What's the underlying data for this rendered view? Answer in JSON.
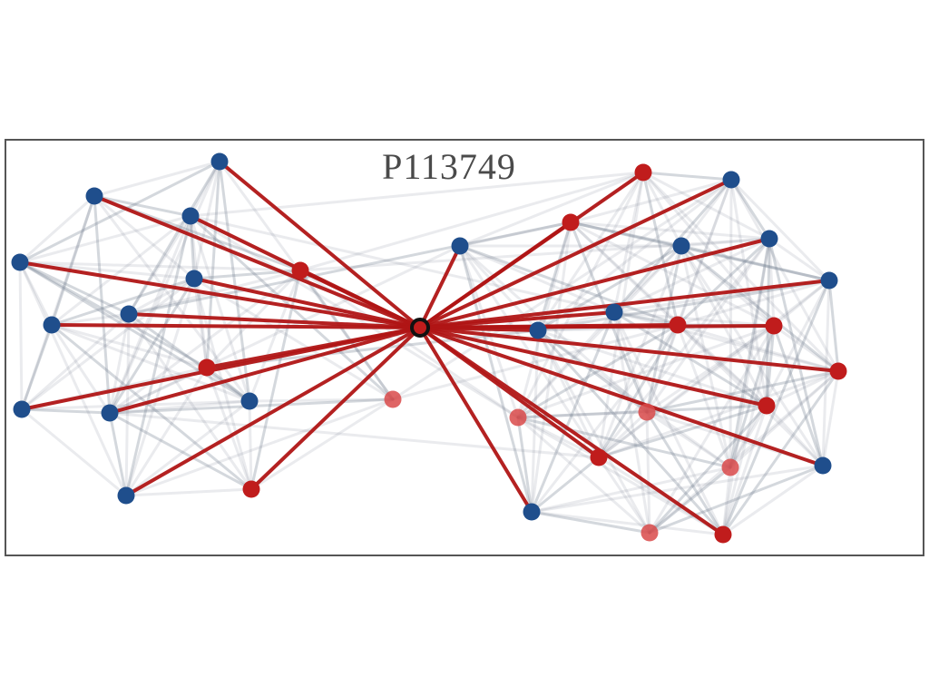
{
  "title": "P113749",
  "colors": {
    "blue_node": "#1f4e8c",
    "red_node": "#c01c1c",
    "light_red_node": "#d94a4a",
    "highlight_edge": "#b01515",
    "background_edge": "#7a8595",
    "frame": "#555555",
    "focus_ring": "#111111"
  },
  "legend": null
}
